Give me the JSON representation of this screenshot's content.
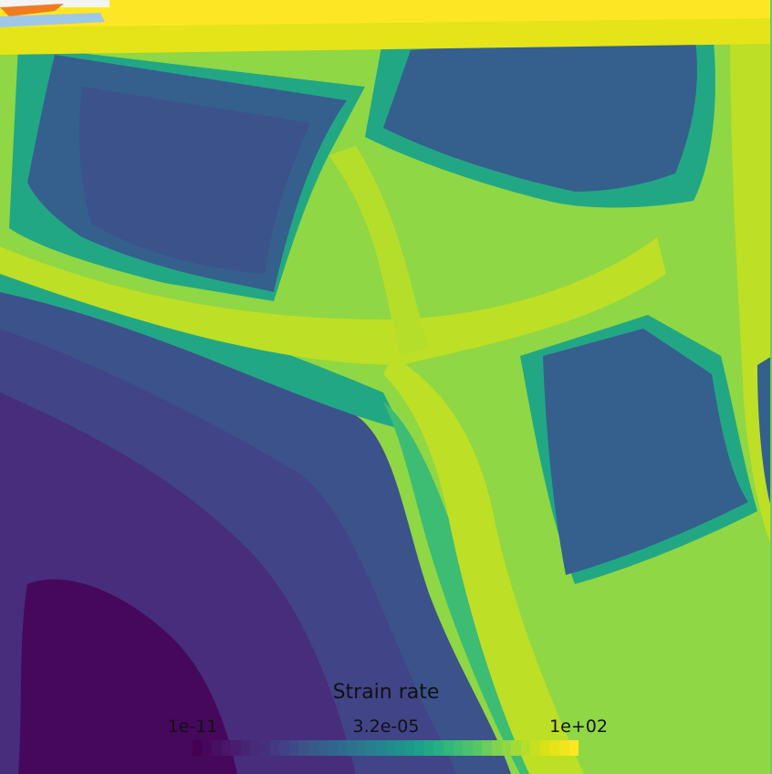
{
  "legend": {
    "title": "Strain rate",
    "tick_labels": [
      "1e-11",
      "3.2e-05",
      "1e+02"
    ],
    "colormap": [
      "#440154",
      "#46085c",
      "#471063",
      "#481769",
      "#481d6f",
      "#482475",
      "#472a7a",
      "#46307e",
      "#443983",
      "#424086",
      "#3e4989",
      "#3b528b",
      "#38598c",
      "#355f8d",
      "#32658e",
      "#2f6b8e",
      "#2c728e",
      "#2a788e",
      "#277f8e",
      "#25858e",
      "#228b8d",
      "#20928c",
      "#1f988b",
      "#1fa088",
      "#22a785",
      "#28ae80",
      "#32b67a",
      "#3dbc74",
      "#4ac16d",
      "#56c667",
      "#6ccd5a",
      "#7fd34e",
      "#90d743",
      "#a2da37",
      "#b5de2b",
      "#c8e020",
      "#d8e219",
      "#e5e419",
      "#f1e51d",
      "#fde725"
    ]
  },
  "colors": {
    "field_background": "#8fd744",
    "upper_cell": "#355f8d",
    "low_strain_region": "#472d7b",
    "band_high": "#bddf26",
    "top_edge": "#fde725",
    "mid_band": "#3dbc74"
  }
}
